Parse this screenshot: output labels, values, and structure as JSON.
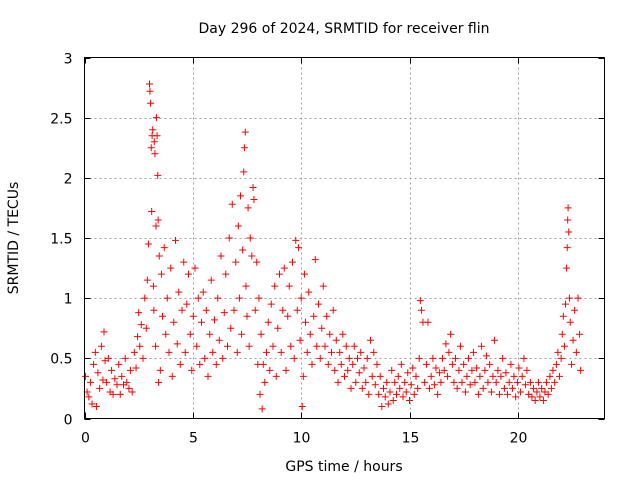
{
  "chart_data": {
    "type": "scatter",
    "title": "Day 296 of 2024, SRMTID for receiver flin",
    "xlabel": "GPS time / hours",
    "ylabel": "SRMTID / TECUs",
    "xlim": [
      0,
      24
    ],
    "ylim": [
      0,
      3
    ],
    "grid": true,
    "marker": "+",
    "color": "#ff0000",
    "x_ticks": [
      0,
      5,
      10,
      15,
      20
    ],
    "x_tick_labels": [
      "0",
      "5",
      "10",
      "15",
      "20"
    ],
    "y_ticks": [
      0,
      0.5,
      1,
      1.5,
      2,
      2.5,
      3
    ],
    "y_tick_labels": [
      "0",
      "0.5",
      "1",
      "1.5",
      "2",
      "2.5",
      "3"
    ],
    "points": [
      [
        0.05,
        0.35
      ],
      [
        0.12,
        0.22
      ],
      [
        0.2,
        0.18
      ],
      [
        0.28,
        0.3
      ],
      [
        0.35,
        0.12
      ],
      [
        0.42,
        0.45
      ],
      [
        0.5,
        0.55
      ],
      [
        0.55,
        0.1
      ],
      [
        0.62,
        0.38
      ],
      [
        0.7,
        0.25
      ],
      [
        0.78,
        0.6
      ],
      [
        0.85,
        0.32
      ],
      [
        0.9,
        0.72
      ],
      [
        0.95,
        0.48
      ],
      [
        1.02,
        0.3
      ],
      [
        1.1,
        0.5
      ],
      [
        1.18,
        0.22
      ],
      [
        1.25,
        0.4
      ],
      [
        1.32,
        0.2
      ],
      [
        1.4,
        0.33
      ],
      [
        1.5,
        0.28
      ],
      [
        1.58,
        0.45
      ],
      [
        1.65,
        0.2
      ],
      [
        1.72,
        0.35
      ],
      [
        1.8,
        0.28
      ],
      [
        1.88,
        0.5
      ],
      [
        1.95,
        0.3
      ],
      [
        2.05,
        0.25
      ],
      [
        2.12,
        0.4
      ],
      [
        2.2,
        0.22
      ],
      [
        2.3,
        0.55
      ],
      [
        2.38,
        0.42
      ],
      [
        2.45,
        0.68
      ],
      [
        2.5,
        0.88
      ],
      [
        2.55,
        0.6
      ],
      [
        2.62,
        0.78
      ],
      [
        2.7,
        0.5
      ],
      [
        2.78,
        1.0
      ],
      [
        2.85,
        0.75
      ],
      [
        2.9,
        1.15
      ],
      [
        2.95,
        1.45
      ],
      [
        3.0,
        2.78
      ],
      [
        3.02,
        2.72
      ],
      [
        3.05,
        2.62
      ],
      [
        3.08,
        2.25
      ],
      [
        3.1,
        1.72
      ],
      [
        3.12,
        2.35
      ],
      [
        3.15,
        2.4
      ],
      [
        3.18,
        1.1
      ],
      [
        3.2,
        0.9
      ],
      [
        3.22,
        2.3
      ],
      [
        3.25,
        2.2
      ],
      [
        3.28,
        0.6
      ],
      [
        3.3,
        1.6
      ],
      [
        3.32,
        2.5
      ],
      [
        3.35,
        2.35
      ],
      [
        3.38,
        2.02
      ],
      [
        3.4,
        1.65
      ],
      [
        3.42,
        0.3
      ],
      [
        3.45,
        1.35
      ],
      [
        3.5,
        0.4
      ],
      [
        3.55,
        1.2
      ],
      [
        3.6,
        0.85
      ],
      [
        3.68,
        1.42
      ],
      [
        3.75,
        0.7
      ],
      [
        3.82,
        1.0
      ],
      [
        3.9,
        0.55
      ],
      [
        3.98,
        1.25
      ],
      [
        4.05,
        0.35
      ],
      [
        4.12,
        0.8
      ],
      [
        4.2,
        1.48
      ],
      [
        4.28,
        0.62
      ],
      [
        4.35,
        1.05
      ],
      [
        4.42,
        0.45
      ],
      [
        4.5,
        0.9
      ],
      [
        4.58,
        1.3
      ],
      [
        4.65,
        0.55
      ],
      [
        4.72,
        0.95
      ],
      [
        4.8,
        1.2
      ],
      [
        4.88,
        0.7
      ],
      [
        4.95,
        0.4
      ],
      [
        5.02,
        0.85
      ],
      [
        5.1,
        1.25
      ],
      [
        5.18,
        0.6
      ],
      [
        5.25,
        1.0
      ],
      [
        5.32,
        0.45
      ],
      [
        5.4,
        0.8
      ],
      [
        5.48,
        1.05
      ],
      [
        5.55,
        0.5
      ],
      [
        5.62,
        0.9
      ],
      [
        5.7,
        0.35
      ],
      [
        5.78,
        0.7
      ],
      [
        5.85,
        1.15
      ],
      [
        5.92,
        0.55
      ],
      [
        6.0,
        0.82
      ],
      [
        6.08,
        0.45
      ],
      [
        6.15,
        1.0
      ],
      [
        6.22,
        0.65
      ],
      [
        6.3,
        1.35
      ],
      [
        6.38,
        0.5
      ],
      [
        6.45,
        0.88
      ],
      [
        6.52,
        1.2
      ],
      [
        6.6,
        0.6
      ],
      [
        6.68,
        1.5
      ],
      [
        6.75,
        0.75
      ],
      [
        6.82,
        1.78
      ],
      [
        6.9,
        0.9
      ],
      [
        6.98,
        1.3
      ],
      [
        7.05,
        0.55
      ],
      [
        7.1,
        1.6
      ],
      [
        7.15,
        1.0
      ],
      [
        7.2,
        1.85
      ],
      [
        7.25,
        0.7
      ],
      [
        7.3,
        1.4
      ],
      [
        7.35,
        2.05
      ],
      [
        7.38,
        2.25
      ],
      [
        7.42,
        2.38
      ],
      [
        7.45,
        1.1
      ],
      [
        7.5,
        0.85
      ],
      [
        7.55,
        1.75
      ],
      [
        7.6,
        0.6
      ],
      [
        7.65,
        1.5
      ],
      [
        7.72,
        1.35
      ],
      [
        7.78,
        1.92
      ],
      [
        7.82,
        1.82
      ],
      [
        7.88,
        0.9
      ],
      [
        7.95,
        1.3
      ],
      [
        8.0,
        0.45
      ],
      [
        8.05,
        1.0
      ],
      [
        8.1,
        0.2
      ],
      [
        8.15,
        0.7
      ],
      [
        8.2,
        0.08
      ],
      [
        8.25,
        0.45
      ],
      [
        8.32,
        0.3
      ],
      [
        8.4,
        0.55
      ],
      [
        8.48,
        0.8
      ],
      [
        8.55,
        0.4
      ],
      [
        8.62,
        0.95
      ],
      [
        8.7,
        0.6
      ],
      [
        8.78,
        1.1
      ],
      [
        8.85,
        0.35
      ],
      [
        8.92,
        0.75
      ],
      [
        9.0,
        1.2
      ],
      [
        9.08,
        0.55
      ],
      [
        9.15,
        0.9
      ],
      [
        9.22,
        1.25
      ],
      [
        9.3,
        0.4
      ],
      [
        9.38,
        0.85
      ],
      [
        9.45,
        1.1
      ],
      [
        9.52,
        0.6
      ],
      [
        9.6,
        1.3
      ],
      [
        9.68,
        0.5
      ],
      [
        9.75,
        1.48
      ],
      [
        9.82,
        0.9
      ],
      [
        9.88,
        1.42
      ],
      [
        9.95,
        0.65
      ],
      [
        10.0,
        1.0
      ],
      [
        10.05,
        0.1
      ],
      [
        10.1,
        0.35
      ],
      [
        10.15,
        1.2
      ],
      [
        10.2,
        0.8
      ],
      [
        10.28,
        0.55
      ],
      [
        10.35,
        1.05
      ],
      [
        10.42,
        0.7
      ],
      [
        10.5,
        0.45
      ],
      [
        10.58,
        0.85
      ],
      [
        10.65,
        1.32
      ],
      [
        10.72,
        0.6
      ],
      [
        10.8,
        0.95
      ],
      [
        10.88,
        0.5
      ],
      [
        10.95,
        0.75
      ],
      [
        11.02,
        1.1
      ],
      [
        11.1,
        0.6
      ],
      [
        11.18,
        0.85
      ],
      [
        11.25,
        0.45
      ],
      [
        11.32,
        0.7
      ],
      [
        11.4,
        0.55
      ],
      [
        11.48,
        0.9
      ],
      [
        11.55,
        0.4
      ],
      [
        11.62,
        0.65
      ],
      [
        11.7,
        0.3
      ],
      [
        11.78,
        0.55
      ],
      [
        11.85,
        0.45
      ],
      [
        11.92,
        0.7
      ],
      [
        12.0,
        0.35
      ],
      [
        12.08,
        0.6
      ],
      [
        12.15,
        0.4
      ],
      [
        12.22,
        0.5
      ],
      [
        12.3,
        0.25
      ],
      [
        12.38,
        0.45
      ],
      [
        12.45,
        0.6
      ],
      [
        12.52,
        0.3
      ],
      [
        12.6,
        0.5
      ],
      [
        12.68,
        0.38
      ],
      [
        12.75,
        0.55
      ],
      [
        12.82,
        0.25
      ],
      [
        12.9,
        0.42
      ],
      [
        12.98,
        0.3
      ],
      [
        13.05,
        0.5
      ],
      [
        13.12,
        0.2
      ],
      [
        13.2,
        0.65
      ],
      [
        13.28,
        0.35
      ],
      [
        13.35,
        0.55
      ],
      [
        13.42,
        0.28
      ],
      [
        13.5,
        0.45
      ],
      [
        13.58,
        0.2
      ],
      [
        13.65,
        0.35
      ],
      [
        13.72,
        0.1
      ],
      [
        13.8,
        0.25
      ],
      [
        13.88,
        0.18
      ],
      [
        13.95,
        0.3
      ],
      [
        14.02,
        0.12
      ],
      [
        14.1,
        0.22
      ],
      [
        14.18,
        0.4
      ],
      [
        14.25,
        0.15
      ],
      [
        14.32,
        0.3
      ],
      [
        14.4,
        0.2
      ],
      [
        14.48,
        0.35
      ],
      [
        14.55,
        0.25
      ],
      [
        14.62,
        0.45
      ],
      [
        14.7,
        0.18
      ],
      [
        14.78,
        0.3
      ],
      [
        14.85,
        0.22
      ],
      [
        14.92,
        0.38
      ],
      [
        15.0,
        0.15
      ],
      [
        15.08,
        0.28
      ],
      [
        15.15,
        0.42
      ],
      [
        15.22,
        0.2
      ],
      [
        15.3,
        0.35
      ],
      [
        15.38,
        0.25
      ],
      [
        15.45,
        0.5
      ],
      [
        15.5,
        0.98
      ],
      [
        15.55,
        0.9
      ],
      [
        15.62,
        0.8
      ],
      [
        15.7,
        0.3
      ],
      [
        15.78,
        0.45
      ],
      [
        15.85,
        0.8
      ],
      [
        15.92,
        0.25
      ],
      [
        16.0,
        0.35
      ],
      [
        16.08,
        0.5
      ],
      [
        16.15,
        0.28
      ],
      [
        16.22,
        0.42
      ],
      [
        16.3,
        0.2
      ],
      [
        16.38,
        0.38
      ],
      [
        16.45,
        0.3
      ],
      [
        16.52,
        0.5
      ],
      [
        16.6,
        0.4
      ],
      [
        16.68,
        0.62
      ],
      [
        16.75,
        0.35
      ],
      [
        16.82,
        0.55
      ],
      [
        16.9,
        0.7
      ],
      [
        16.98,
        0.45
      ],
      [
        17.05,
        0.3
      ],
      [
        17.12,
        0.5
      ],
      [
        17.2,
        0.25
      ],
      [
        17.28,
        0.4
      ],
      [
        17.35,
        0.6
      ],
      [
        17.42,
        0.3
      ],
      [
        17.5,
        0.45
      ],
      [
        17.58,
        0.22
      ],
      [
        17.65,
        0.35
      ],
      [
        17.72,
        0.5
      ],
      [
        17.8,
        0.28
      ],
      [
        17.88,
        0.4
      ],
      [
        17.95,
        0.55
      ],
      [
        18.02,
        0.3
      ],
      [
        18.1,
        0.42
      ],
      [
        18.18,
        0.2
      ],
      [
        18.25,
        0.35
      ],
      [
        18.32,
        0.6
      ],
      [
        18.4,
        0.25
      ],
      [
        18.48,
        0.4
      ],
      [
        18.55,
        0.52
      ],
      [
        18.62,
        0.3
      ],
      [
        18.7,
        0.45
      ],
      [
        18.78,
        0.22
      ],
      [
        18.85,
        0.35
      ],
      [
        18.92,
        0.65
      ],
      [
        19.0,
        0.3
      ],
      [
        19.08,
        0.4
      ],
      [
        19.15,
        0.2
      ],
      [
        19.22,
        0.35
      ],
      [
        19.3,
        0.5
      ],
      [
        19.38,
        0.25
      ],
      [
        19.45,
        0.38
      ],
      [
        19.52,
        0.2
      ],
      [
        19.6,
        0.3
      ],
      [
        19.68,
        0.45
      ],
      [
        19.75,
        0.25
      ],
      [
        19.82,
        0.35
      ],
      [
        19.9,
        0.18
      ],
      [
        19.98,
        0.3
      ],
      [
        20.05,
        0.42
      ],
      [
        20.12,
        0.22
      ],
      [
        20.2,
        0.35
      ],
      [
        20.28,
        0.5
      ],
      [
        20.35,
        0.28
      ],
      [
        20.42,
        0.4
      ],
      [
        20.5,
        0.2
      ],
      [
        20.58,
        0.3
      ],
      [
        20.65,
        0.18
      ],
      [
        20.72,
        0.25
      ],
      [
        20.8,
        0.15
      ],
      [
        20.88,
        0.22
      ],
      [
        20.95,
        0.3
      ],
      [
        21.02,
        0.18
      ],
      [
        21.1,
        0.25
      ],
      [
        21.18,
        0.15
      ],
      [
        21.25,
        0.22
      ],
      [
        21.32,
        0.3
      ],
      [
        21.4,
        0.2
      ],
      [
        21.48,
        0.35
      ],
      [
        21.55,
        0.25
      ],
      [
        21.62,
        0.4
      ],
      [
        21.7,
        0.3
      ],
      [
        21.78,
        0.45
      ],
      [
        21.85,
        0.55
      ],
      [
        21.92,
        0.35
      ],
      [
        22.0,
        0.5
      ],
      [
        22.05,
        0.7
      ],
      [
        22.1,
        0.85
      ],
      [
        22.15,
        0.6
      ],
      [
        22.2,
        0.95
      ],
      [
        22.25,
        1.25
      ],
      [
        22.28,
        1.42
      ],
      [
        22.3,
        1.65
      ],
      [
        22.32,
        1.75
      ],
      [
        22.35,
        1.55
      ],
      [
        22.38,
        1.0
      ],
      [
        22.42,
        0.8
      ],
      [
        22.48,
        0.45
      ],
      [
        22.55,
        0.65
      ],
      [
        22.62,
        0.9
      ],
      [
        22.7,
        0.55
      ],
      [
        22.78,
        1.0
      ],
      [
        22.85,
        0.7
      ],
      [
        22.9,
        0.4
      ]
    ]
  }
}
